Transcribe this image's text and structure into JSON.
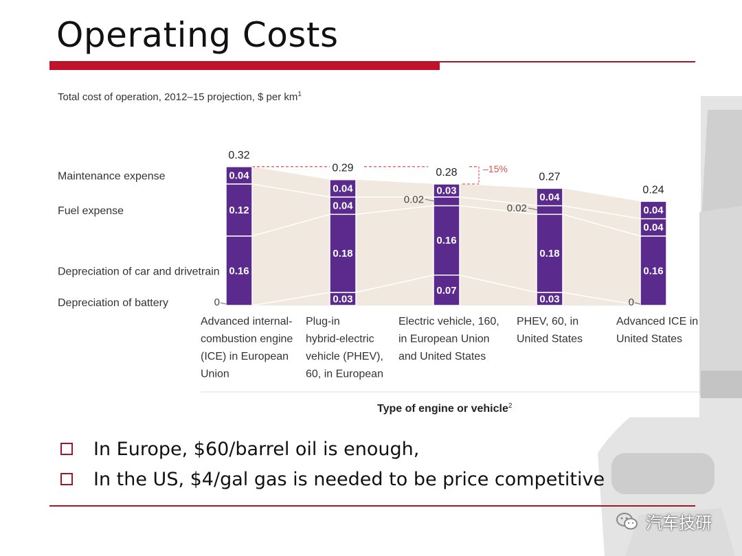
{
  "slide": {
    "title": "Operating Costs",
    "bullets": [
      "In Europe, $60/barrel oil is enough,",
      "In the US, $4/gal gas is needed to be price competitive"
    ]
  },
  "watermark": {
    "text": "汽车技研",
    "icon": "wechat-icon"
  },
  "colors": {
    "bar": "#5a2a8c",
    "accent_red": "#c0132b",
    "annotation_red": "#d9534f",
    "flow_band": "#f1e8df"
  },
  "chart_data": {
    "type": "bar",
    "stacked": true,
    "title": "Total cost of operation, 2012–15 projection, $ per km",
    "title_footnote": "1",
    "xlabel": "Type of engine or vehicle",
    "xlabel_footnote": "2",
    "categories": [
      [
        "Advanced internal-",
        "combustion engine",
        "(ICE) in European",
        "Union"
      ],
      [
        "Plug-in",
        "hybrid-electric",
        "vehicle (PHEV),",
        "60, in European"
      ],
      [
        "Electric vehicle, 160,",
        "in European Union",
        "and United States"
      ],
      [
        "PHEV, 60, in",
        "United States"
      ],
      [
        "Advanced ICE in",
        "United States"
      ]
    ],
    "series": [
      {
        "name": "Depreciation of battery",
        "values": [
          0,
          0.03,
          0.07,
          0.03,
          0
        ],
        "labels": [
          "0",
          "0.03",
          "0.07",
          "0.03",
          "0"
        ]
      },
      {
        "name": "Depreciation of car and drivetrain",
        "values": [
          0.16,
          0.18,
          0.16,
          0.18,
          0.16
        ],
        "labels": [
          "0.16",
          "0.18",
          "0.16",
          "0.18",
          "0.16"
        ]
      },
      {
        "name": "Fuel expense",
        "values": [
          0.12,
          0.04,
          0.02,
          0.02,
          0.04
        ],
        "labels": [
          "0.12",
          "0.04",
          "0.02",
          "0.02",
          "0.04"
        ]
      },
      {
        "name": "Maintenance expense",
        "values": [
          0.04,
          0.04,
          0.03,
          0.04,
          0.04
        ],
        "labels": [
          "0.04",
          "0.04",
          "0.03",
          "0.04",
          "0.04"
        ]
      }
    ],
    "totals": [
      "0.32",
      "0.29",
      "0.28",
      "0.27",
      "0.24"
    ],
    "annotation": "–15%",
    "ylim": [
      0,
      0.32
    ]
  }
}
